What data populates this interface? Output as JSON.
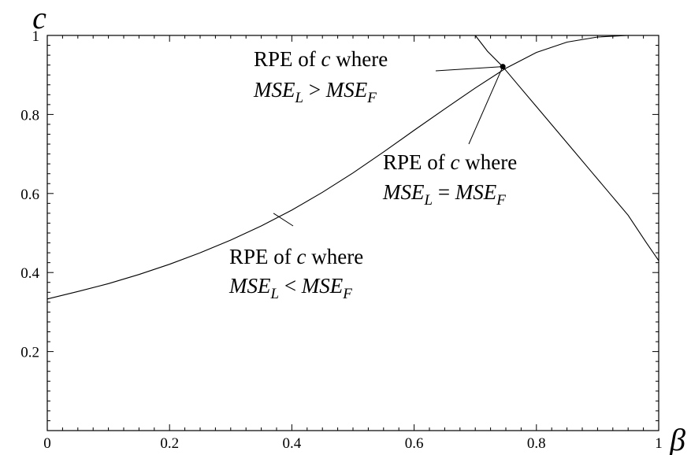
{
  "chart_data": {
    "type": "line",
    "xlabel": "β",
    "ylabel": "c",
    "xlim": [
      0,
      1
    ],
    "ylim": [
      0,
      1
    ],
    "x_ticks": [
      "0",
      "0.2",
      "0.4",
      "0.6",
      "0.8",
      "1"
    ],
    "y_ticks": [
      "0.2",
      "0.4",
      "0.6",
      "0.8",
      "1"
    ],
    "grid": false,
    "series": [
      {
        "x": [
          0,
          0.05,
          0.1,
          0.15,
          0.2,
          0.25,
          0.3,
          0.35,
          0.4,
          0.45,
          0.5,
          0.55,
          0.6,
          0.65,
          0.7,
          0.75,
          0.8,
          0.85,
          0.9,
          0.95,
          1.0
        ],
        "y": [
          0.333,
          0.352,
          0.372,
          0.395,
          0.421,
          0.45,
          0.482,
          0.518,
          0.558,
          0.603,
          0.652,
          0.705,
          0.76,
          0.814,
          0.867,
          0.917,
          0.957,
          0.983,
          0.996,
          1.0,
          1.0
        ]
      },
      {
        "x": [
          0.7,
          0.72,
          0.745,
          0.77,
          0.8,
          0.83,
          0.86,
          0.89,
          0.92,
          0.95,
          0.98,
          1.0
        ],
        "y": [
          1.0,
          0.96,
          0.921,
          0.875,
          0.82,
          0.765,
          0.71,
          0.655,
          0.6,
          0.545,
          0.475,
          0.43
        ]
      }
    ],
    "intersection_point": {
      "x": 0.745,
      "y": 0.921
    },
    "annotations": [
      {
        "line1": "RPE of c where",
        "line2": "MSE_L > MSE_F",
        "points_to": {
          "x": 0.745,
          "y": 0.921
        }
      },
      {
        "line1": "RPE of c where",
        "line2": "MSE_L = MSE_F",
        "points_to": {
          "x": 0.745,
          "y": 0.921
        }
      },
      {
        "line1": "RPE of c where",
        "line2": "MSE_L < MSE_F",
        "points_to": {
          "x": 0.37,
          "y": 0.55
        }
      }
    ]
  },
  "labels": {
    "x_title": "β",
    "y_title": "c",
    "ann_gt_a": "RPE of ",
    "ann_gt_c": "c",
    "ann_gt_b": " where",
    "ann_gt_lhs": "MSE",
    "ann_gt_lsub": "L",
    "ann_gt_op": " > ",
    "ann_gt_rhs": "MSE",
    "ann_gt_rsub": "F",
    "ann_eq_a": "RPE of ",
    "ann_eq_c": "c",
    "ann_eq_b": " where",
    "ann_eq_lhs": "MSE",
    "ann_eq_lsub": "L",
    "ann_eq_op": " = ",
    "ann_eq_rhs": "MSE",
    "ann_eq_rsub": "F",
    "ann_lt_a": "RPE of ",
    "ann_lt_c": "c",
    "ann_lt_b": " where",
    "ann_lt_lhs": "MSE",
    "ann_lt_lsub": "L",
    "ann_lt_op": " < ",
    "ann_lt_rhs": "MSE",
    "ann_lt_rsub": "F"
  }
}
